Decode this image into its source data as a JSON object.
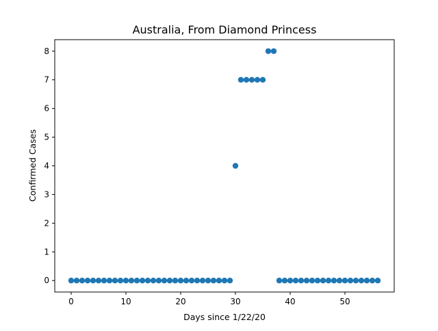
{
  "chart_data": {
    "type": "scatter",
    "title": "Australia, From Diamond Princess",
    "xlabel": "Days since 1/22/20",
    "ylabel": "Confirmed Cases",
    "xlim": [
      -3,
      59
    ],
    "ylim": [
      -0.4,
      8.4
    ],
    "xticks": [
      0,
      10,
      20,
      30,
      40,
      50
    ],
    "yticks": [
      0,
      1,
      2,
      3,
      4,
      5,
      6,
      7,
      8
    ],
    "grid": false,
    "marker_color": "#1f77b4",
    "series": [
      {
        "x": [
          0,
          1,
          2,
          3,
          4,
          5,
          6,
          7,
          8,
          9,
          10,
          11,
          12,
          13,
          14,
          15,
          16,
          17,
          18,
          19,
          20,
          21,
          22,
          23,
          24,
          25,
          26,
          27,
          28,
          29,
          30,
          31,
          32,
          33,
          34,
          35,
          36,
          37,
          38,
          39,
          40,
          41,
          42,
          43,
          44,
          45,
          46,
          47,
          48,
          49,
          50,
          51,
          52,
          53,
          54,
          55,
          56
        ],
        "y": [
          0,
          0,
          0,
          0,
          0,
          0,
          0,
          0,
          0,
          0,
          0,
          0,
          0,
          0,
          0,
          0,
          0,
          0,
          0,
          0,
          0,
          0,
          0,
          0,
          0,
          0,
          0,
          0,
          0,
          0,
          4,
          7,
          7,
          7,
          7,
          7,
          8,
          8,
          0,
          0,
          0,
          0,
          0,
          0,
          0,
          0,
          0,
          0,
          0,
          0,
          0,
          0,
          0,
          0,
          0,
          0,
          0
        ]
      }
    ]
  }
}
